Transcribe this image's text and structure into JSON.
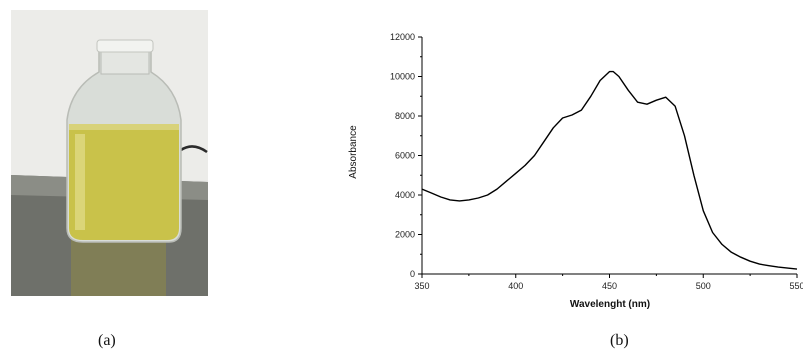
{
  "figure": {
    "panel_a_caption": "(a)",
    "panel_b_caption": "(b)"
  },
  "photo": {
    "subject": "glass-bottle-with-yellow-liquid",
    "colors": {
      "liquid": "#c9c24a",
      "wall": "#e9e9e6",
      "table": "#6e706a"
    }
  },
  "chart_data": {
    "type": "line",
    "xlabel": "Wavelenght (nm)",
    "ylabel": "Absorbance",
    "xlim": [
      350,
      550
    ],
    "ylim": [
      0,
      12000
    ],
    "x_ticks": [
      "350",
      "400",
      "450",
      "500",
      "550"
    ],
    "y_ticks": [
      "0",
      "2000",
      "4000",
      "6000",
      "8000",
      "10000",
      "12000"
    ],
    "grid": false,
    "series": [
      {
        "color": "#000000",
        "x": [
          350,
          355,
          360,
          365,
          370,
          375,
          380,
          385,
          390,
          395,
          400,
          405,
          410,
          415,
          420,
          425,
          430,
          435,
          440,
          445,
          450,
          452,
          455,
          460,
          465,
          470,
          475,
          480,
          485,
          490,
          495,
          500,
          505,
          510,
          515,
          520,
          525,
          530,
          535,
          540,
          545,
          550
        ],
        "y": [
          4300,
          4100,
          3900,
          3750,
          3700,
          3750,
          3850,
          4000,
          4300,
          4700,
          5100,
          5500,
          6000,
          6700,
          7400,
          7900,
          8050,
          8300,
          9000,
          9800,
          10250,
          10250,
          10000,
          9300,
          8700,
          8600,
          8800,
          8950,
          8500,
          7000,
          5000,
          3200,
          2100,
          1500,
          1100,
          850,
          650,
          500,
          420,
          350,
          300,
          250
        ]
      }
    ]
  }
}
